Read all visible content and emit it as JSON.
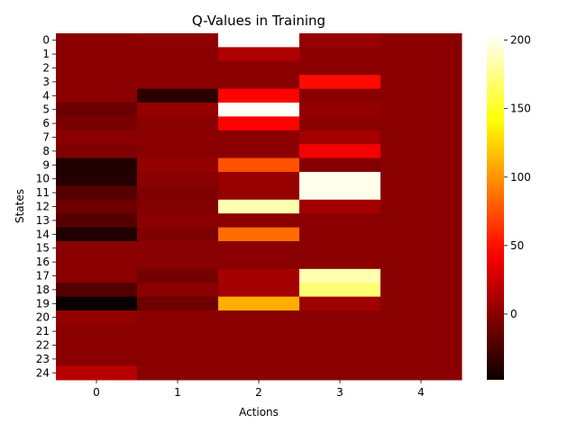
{
  "chart_data": {
    "type": "heatmap",
    "title": "Q-Values in Training",
    "xlabel": "Actions",
    "ylabel": "States",
    "x_categories": [
      "0",
      "1",
      "2",
      "3",
      "4"
    ],
    "y_categories": [
      "0",
      "1",
      "2",
      "3",
      "4",
      "5",
      "6",
      "7",
      "8",
      "9",
      "10",
      "11",
      "12",
      "13",
      "14",
      "15",
      "16",
      "17",
      "18",
      "19",
      "20",
      "21",
      "22",
      "23",
      "24"
    ],
    "colormap": "hot",
    "vmin": -48,
    "vmax": 205,
    "colorbar_ticks": [
      0,
      50,
      100,
      150,
      200
    ],
    "grid": false,
    "values": [
      [
        0,
        2,
        205,
        5,
        0
      ],
      [
        0,
        0,
        14,
        0,
        0
      ],
      [
        0,
        0,
        0,
        0,
        0
      ],
      [
        0,
        0,
        0,
        48,
        0
      ],
      [
        0,
        -35,
        45,
        0,
        0
      ],
      [
        -12,
        4,
        203,
        4,
        0
      ],
      [
        -6,
        0,
        45,
        0,
        0
      ],
      [
        0,
        0,
        0,
        10,
        0
      ],
      [
        -4,
        0,
        0,
        40,
        0
      ],
      [
        -40,
        3,
        75,
        -2,
        0
      ],
      [
        -38,
        0,
        5,
        200,
        0
      ],
      [
        -20,
        -4,
        5,
        200,
        0
      ],
      [
        -10,
        -3,
        185,
        10,
        0
      ],
      [
        -20,
        0,
        0,
        0,
        0
      ],
      [
        -40,
        -4,
        85,
        0,
        0
      ],
      [
        0,
        0,
        0,
        0,
        0
      ],
      [
        0,
        0,
        0,
        0,
        0
      ],
      [
        0,
        -8,
        10,
        185,
        0
      ],
      [
        -20,
        0,
        10,
        170,
        0
      ],
      [
        -48,
        -10,
        110,
        8,
        0
      ],
      [
        4,
        0,
        0,
        0,
        0
      ],
      [
        0,
        0,
        0,
        0,
        0
      ],
      [
        0,
        0,
        0,
        0,
        0
      ],
      [
        0,
        0,
        0,
        0,
        0
      ],
      [
        18,
        0,
        0,
        0,
        0
      ]
    ]
  }
}
